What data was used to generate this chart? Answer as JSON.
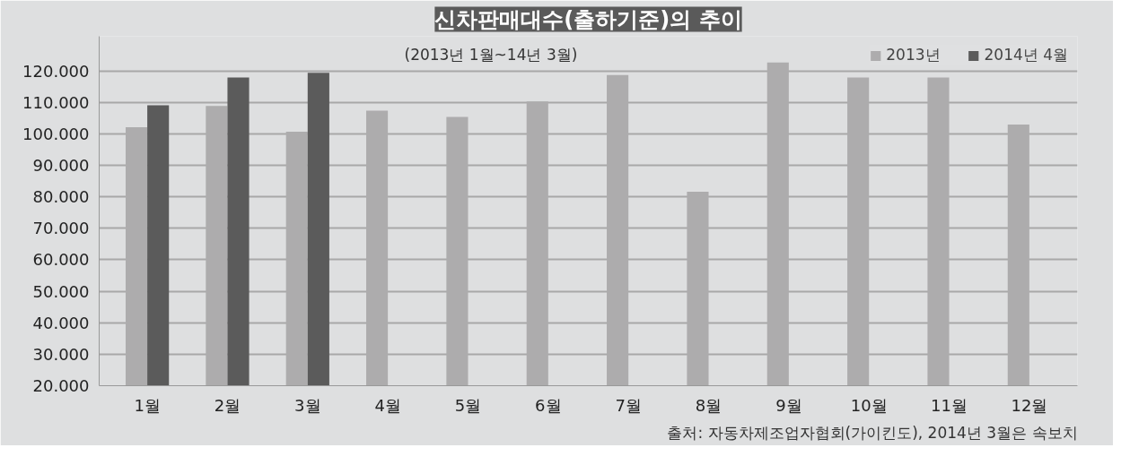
{
  "chart_data": {
    "type": "bar",
    "title": "신차판매대수(출하기준)의 추이",
    "subtitle": "(2013년 1월~14년 3월)",
    "categories": [
      "1월",
      "2월",
      "3월",
      "4월",
      "5월",
      "6월",
      "7월",
      "8월",
      "9월",
      "10월",
      "11월",
      "12월"
    ],
    "series": [
      {
        "name": "2013년",
        "color": "#adacad",
        "values": [
          102100,
          108900,
          100700,
          107400,
          105400,
          110300,
          118700,
          81600,
          122700,
          117900,
          117900,
          103000
        ]
      },
      {
        "name": "2014년 4월",
        "color": "#5b5b5b",
        "values": [
          109100,
          117900,
          119400,
          null,
          null,
          null,
          null,
          null,
          null,
          null,
          null,
          null
        ]
      }
    ],
    "ylim": [
      20000,
      131000
    ],
    "yticks": [
      {
        "value": 20000,
        "label": "20.000"
      },
      {
        "value": 30000,
        "label": "30.000"
      },
      {
        "value": 40000,
        "label": "40.000"
      },
      {
        "value": 50000,
        "label": "50.000"
      },
      {
        "value": 60000,
        "label": "60.000"
      },
      {
        "value": 70000,
        "label": "70.000"
      },
      {
        "value": 80000,
        "label": "80.000"
      },
      {
        "value": 90000,
        "label": "90.000"
      },
      {
        "value": 100000,
        "label": "100.000"
      },
      {
        "value": 110000,
        "label": "110.000"
      },
      {
        "value": 120000,
        "label": "120.000"
      }
    ],
    "grid": "y",
    "legend": "top right",
    "annotations": [
      "출처: 자동차제조업자협회(가이킨도), 2014년 3월은 속보치"
    ]
  }
}
